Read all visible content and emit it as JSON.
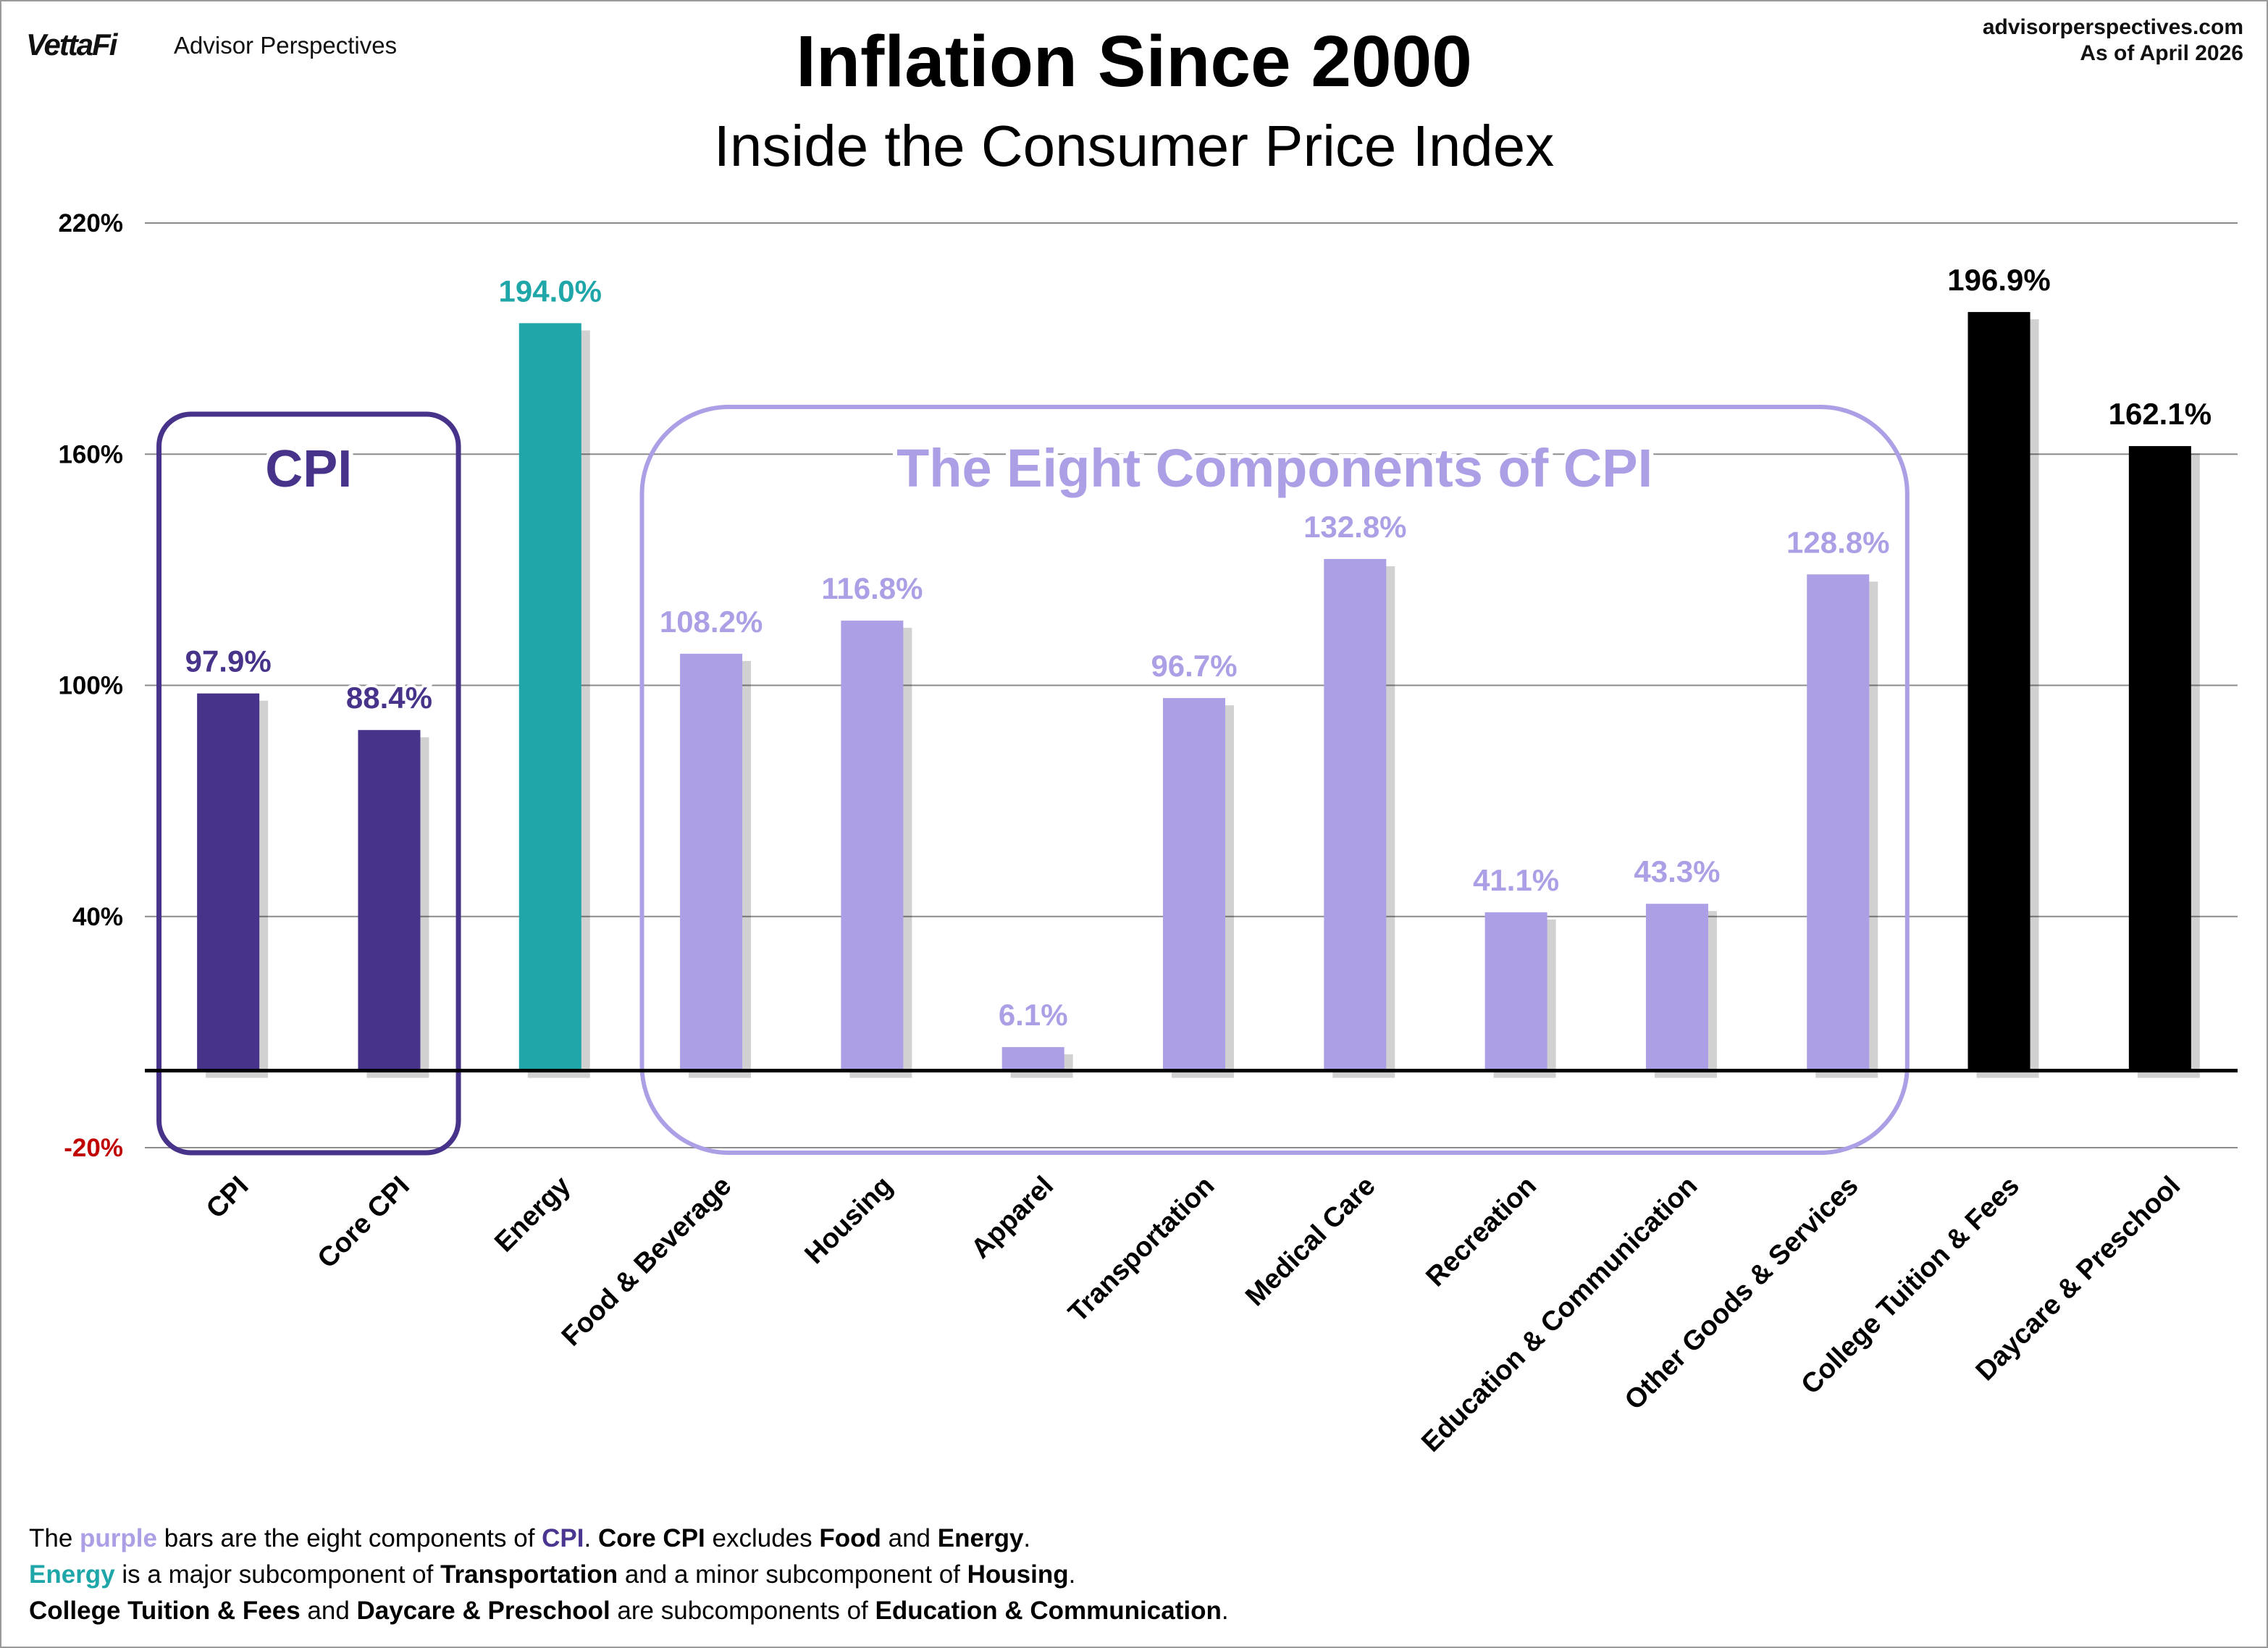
{
  "header": {
    "brand": "VettaFi",
    "brand_sub": "Advisor Perspectives",
    "site": "advisorperspectives.com",
    "as_of": "As of April 2026",
    "title": "Inflation Since 2000",
    "subtitle": "Inside the Consumer Price Index"
  },
  "colors": {
    "cpi": "#47338a",
    "energy": "#1fa6a8",
    "components": "#ad9fe5",
    "other": "#000000",
    "negative_tick": "#c00000"
  },
  "chart_data": {
    "type": "bar",
    "title": "Inflation Since 2000",
    "subtitle": "Inside the Consumer Price Index",
    "ylim": [
      -20,
      220
    ],
    "yticks": [
      -20,
      40,
      100,
      160,
      220
    ],
    "ytick_labels": [
      "-20%",
      "40%",
      "100%",
      "160%",
      "220%"
    ],
    "grid": true,
    "categories": [
      "CPI",
      "Core CPI",
      "Energy",
      "Food & Beverage",
      "Housing",
      "Apparel",
      "Transportation",
      "Medical Care",
      "Recreation",
      "Education & Communication",
      "Other Goods & Services",
      "College Tuition & Fees",
      "Daycare & Preschool"
    ],
    "values": [
      97.9,
      88.4,
      194.0,
      108.2,
      116.8,
      6.1,
      96.7,
      132.8,
      41.1,
      43.3,
      128.8,
      196.9,
      162.1
    ],
    "data_labels": [
      "97.9%",
      "88.4%",
      "194.0%",
      "108.2%",
      "116.8%",
      "6.1%",
      "96.7%",
      "132.8%",
      "41.1%",
      "43.3%",
      "128.8%",
      "196.9%",
      "162.1%"
    ],
    "bar_groups": [
      "cpi",
      "cpi",
      "energy",
      "components",
      "components",
      "components",
      "components",
      "components",
      "components",
      "components",
      "components",
      "other",
      "other"
    ],
    "group_boxes": [
      {
        "label": "CPI",
        "first": 0,
        "last": 1,
        "group": "cpi"
      },
      {
        "label": "The Eight Components of CPI",
        "first": 3,
        "last": 10,
        "group": "components"
      }
    ]
  },
  "notes": {
    "line1": {
      "a": "The ",
      "b": "purple",
      "c": " bars are the eight components of ",
      "d": "CPI",
      "e": ". ",
      "f": "Core CPI",
      "g": " excludes ",
      "h": "Food",
      "i": " and ",
      "j": "Energy",
      "k": "."
    },
    "line2": {
      "a": "Energy",
      "b": " is a major subcomponent of ",
      "c": "Transportation",
      "d": " and a minor subcomponent of ",
      "e": "Housing",
      "f": "."
    },
    "line3": {
      "a": "College Tuition & Fees",
      "b": " and ",
      "c": "Daycare & Preschool",
      "d": " are subcomponents of ",
      "e": "Education & Communication",
      "f": "."
    }
  }
}
